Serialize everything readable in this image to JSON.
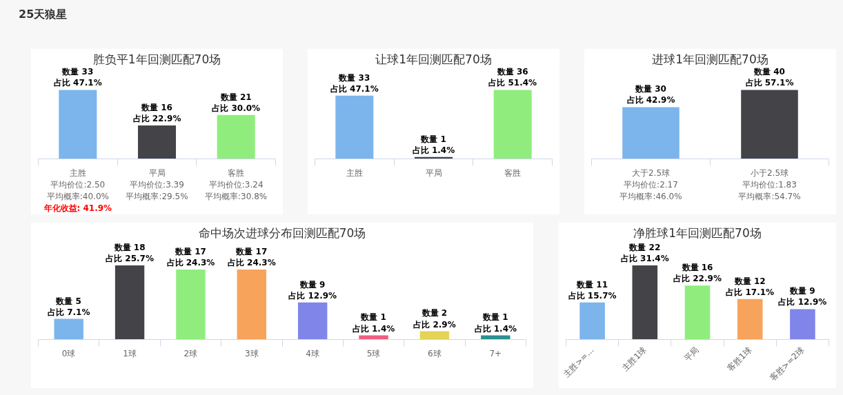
{
  "chart_data": [
    {
      "type": "other",
      "title": "25天狼星"
    },
    {
      "type": "bar",
      "title": "胜负平1年回测匹配70场",
      "categories": [
        "主胜",
        "平局",
        "客胜"
      ],
      "values": [
        33,
        16,
        21
      ],
      "colors": [
        "#7cb5ec",
        "#434348",
        "#90ed7d"
      ],
      "value_labels": [
        "数量 33\n占比 47.1%",
        "数量 16\n占比 22.9%",
        "数量 21\n占比 30.0%"
      ],
      "annotations": [
        "平均价位:2.50",
        "平均价位:3.39",
        "平均价位:3.24",
        "平均概率:40.0%",
        "平均概率:29.5%",
        "平均概率:30.8%",
        "年化收益: 41.9%"
      ]
    },
    {
      "type": "bar",
      "title": "让球1年回测匹配70场",
      "categories": [
        "主胜",
        "平局",
        "客胜"
      ],
      "values": [
        33,
        1,
        36
      ],
      "colors": [
        "#7cb5ec",
        "#434348",
        "#90ed7d"
      ],
      "value_labels": [
        "数量 33\n占比 47.1%",
        "数量 1\n占比 1.4%",
        "数量 36\n占比 51.4%"
      ]
    },
    {
      "type": "bar",
      "title": "进球1年回测匹配70场",
      "categories": [
        "大于2.5球",
        "小于2.5球"
      ],
      "values": [
        30,
        40
      ],
      "colors": [
        "#7cb5ec",
        "#434348"
      ],
      "value_labels": [
        "数量 30\n占比 42.9%",
        "数量 40\n占比 57.1%"
      ],
      "annotations": [
        "平均价位:2.17",
        "平均价位:1.83",
        "平均概率:46.0%",
        "平均概率:54.7%"
      ]
    },
    {
      "type": "bar",
      "title": "命中场次进球分布回测匹配70场",
      "categories": [
        "0球",
        "1球",
        "2球",
        "3球",
        "4球",
        "5球",
        "6球",
        "7+"
      ],
      "values": [
        5,
        18,
        17,
        17,
        9,
        1,
        2,
        1
      ],
      "colors": [
        "#7cb5ec",
        "#434348",
        "#90ed7d",
        "#f7a35c",
        "#8085e9",
        "#f15c80",
        "#e4d354",
        "#2b908f"
      ],
      "value_labels": [
        "数量 5\n占比 7.1%",
        "数量 18\n占比 25.7%",
        "数量 17\n占比 24.3%",
        "数量 17\n占比 24.3%",
        "数量 9\n占比 12.9%",
        "数量 1\n占比 1.4%",
        "数量 2\n占比 2.9%",
        "数量 1\n占比 1.4%"
      ]
    },
    {
      "type": "bar",
      "title": "净胜球1年回测匹配70场",
      "categories": [
        "主胜>=…",
        "主胜1球",
        "平局",
        "客胜1球",
        "客胜>=2球"
      ],
      "values": [
        11,
        22,
        16,
        12,
        9
      ],
      "colors": [
        "#7cb5ec",
        "#434348",
        "#90ed7d",
        "#f7a35c",
        "#8085e9"
      ],
      "value_labels": [
        "数量 11\n占比 15.7%",
        "数量 22\n占比 31.4%",
        "数量 16\n占比 22.9%",
        "数量 12\n占比 17.1%",
        "数量 9\n占比 12.9%"
      ]
    }
  ]
}
